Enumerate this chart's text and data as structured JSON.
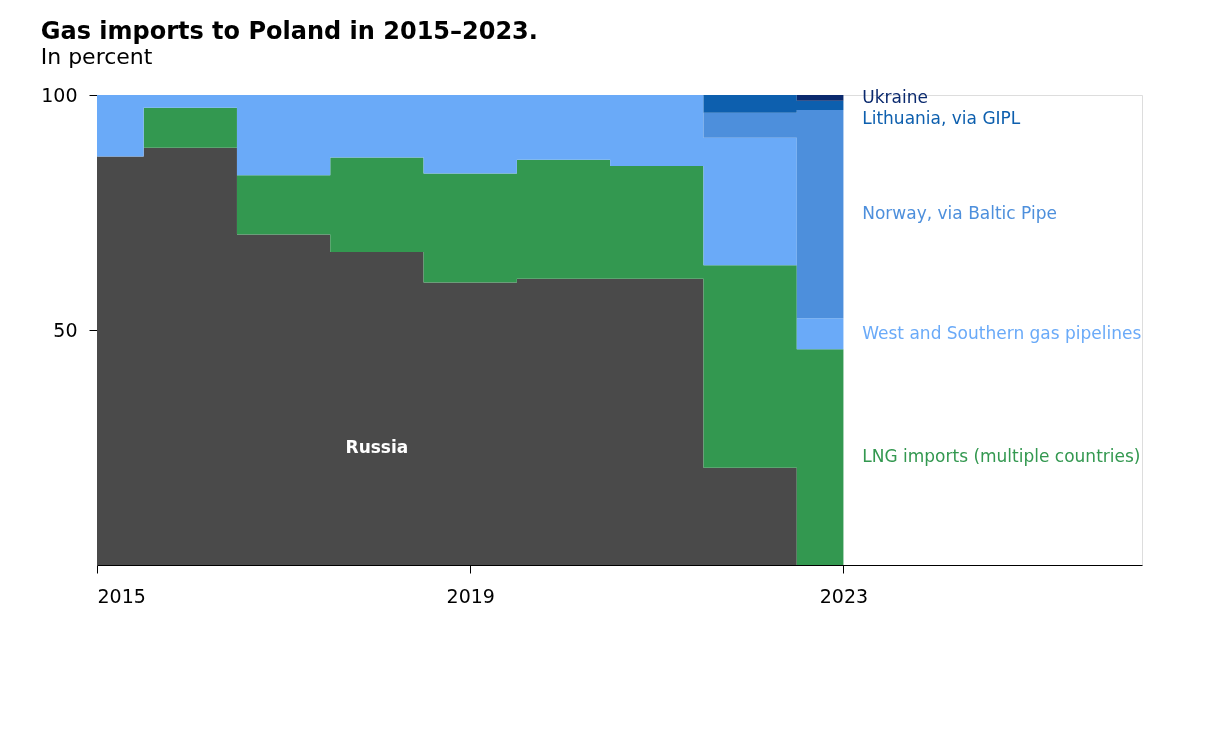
{
  "chart_data": {
    "type": "area",
    "stacked": true,
    "title": "Gas imports to Poland in 2015–2023.",
    "subtitle": "In percent",
    "x": [
      2015,
      2016,
      2017,
      2018,
      2019,
      2020,
      2021,
      2022,
      2023
    ],
    "series": [
      {
        "name": "Russia",
        "color": "#4a4a4a",
        "values": [
          86.9,
          88.8,
          70.3,
          66.6,
          60.1,
          60.9,
          60.9,
          20.7,
          0
        ]
      },
      {
        "name": "LNG imports (multiple countries)",
        "color": "#339850",
        "values": [
          0,
          8.5,
          12.6,
          20.1,
          23.2,
          25.3,
          24.0,
          43.1,
          45.9
        ]
      },
      {
        "name": "West and Southern gas pipelines",
        "color": "#6aaaf8",
        "values": [
          13.1,
          2.7,
          17.1,
          13.3,
          16.7,
          13.8,
          15.1,
          27.1,
          6.6
        ]
      },
      {
        "name": "Norway, via Baltic Pipe",
        "color": "#4d8fdc",
        "values": [
          0,
          0,
          0,
          0,
          0,
          0,
          0,
          5.3,
          44.3
        ]
      },
      {
        "name": "Lithuania, via GIPL",
        "color": "#0d5fae",
        "values": [
          0,
          0,
          0,
          0,
          0,
          0,
          0,
          3.8,
          2.0
        ]
      },
      {
        "name": "Ukraine",
        "color": "#0b2a6e",
        "values": [
          0,
          0,
          0,
          0,
          0,
          0,
          0,
          0,
          1.2
        ]
      }
    ],
    "xlim": [
      2015,
      2026.2
    ],
    "xticks": [
      2015,
      2019,
      2023
    ],
    "ylim": [
      0,
      100
    ],
    "yticks": [
      50,
      100
    ],
    "grid": false
  }
}
